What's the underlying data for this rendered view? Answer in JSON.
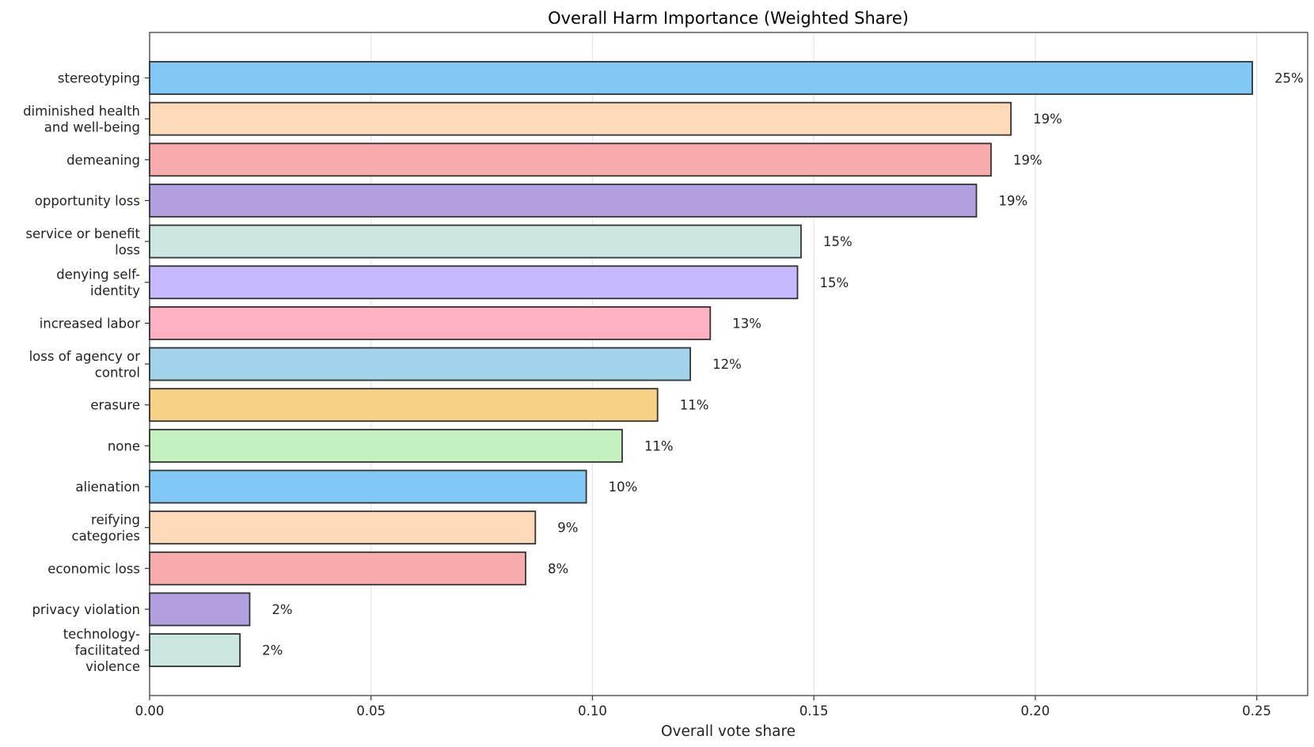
{
  "chart_data": {
    "type": "bar",
    "orientation": "horizontal",
    "title": "Overall Harm Importance (Weighted Share)",
    "xlabel": "Overall vote share",
    "ylabel": "",
    "xlim": [
      0.0,
      0.2615
    ],
    "x_ticks": [
      "0.00",
      "0.05",
      "0.10",
      "0.15",
      "0.20",
      "0.25"
    ],
    "grid": "x-axis vertical lines",
    "legend": "none",
    "categories": [
      [
        "stereotyping"
      ],
      [
        "diminished health",
        "and well-being"
      ],
      [
        "demeaning"
      ],
      [
        "opportunity loss"
      ],
      [
        "service or benefit",
        "loss"
      ],
      [
        "denying self-",
        "identity"
      ],
      [
        "increased labor"
      ],
      [
        "loss of agency or",
        "control"
      ],
      [
        "erasure"
      ],
      [
        "none"
      ],
      [
        "alienation"
      ],
      [
        "reifying",
        "categories"
      ],
      [
        "economic loss"
      ],
      [
        "privacy violation"
      ],
      [
        "technology-",
        "facilitated",
        "violence"
      ]
    ],
    "values": [
      0.249,
      0.1945,
      0.19,
      0.1867,
      0.1471,
      0.1463,
      0.1266,
      0.1221,
      0.1147,
      0.1067,
      0.0986,
      0.0871,
      0.0849,
      0.0226,
      0.0204
    ],
    "data_labels": [
      "25%",
      "19%",
      "19%",
      "19%",
      "15%",
      "15%",
      "13%",
      "12%",
      "11%",
      "11%",
      "10%",
      "9%",
      "8%",
      "2%",
      "2%"
    ],
    "colors": [
      "#82c8f6",
      "#fedab9",
      "#f7abac",
      "#b29fe0",
      "#cce7e1",
      "#c8b8fd",
      "#feb2c3",
      "#a2d3eb",
      "#f7d186",
      "#c3f1bf",
      "#82c8f6",
      "#fedab9",
      "#f7abac",
      "#b29fe0",
      "#cce7e1"
    ]
  }
}
